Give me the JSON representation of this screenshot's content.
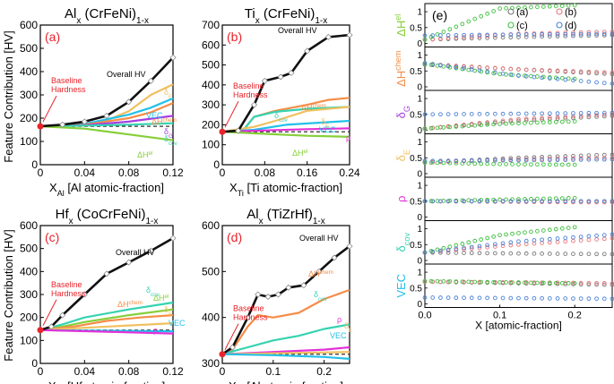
{
  "figure": {
    "shared_ylabel": "Feature Contribution [HV]",
    "baseline_label_line1": "Baseline",
    "baseline_label_line2": "Hardness",
    "overall_label": "Overall HV"
  },
  "colors": {
    "overall": "#111111",
    "baseline": "#e8242b",
    "dE": "#f0c060",
    "Hchem": "#f58d47",
    "Hel": "#86cf3a",
    "VEC": "#22c0ea",
    "dG": "#a63fe0",
    "rho": "#e331d8",
    "dcov": "#35d3b0",
    "panel_a": "#777777",
    "panel_b": "#e8767a",
    "panel_c": "#3fbf3f",
    "panel_d": "#4b82d6"
  },
  "chart_data": [
    {
      "type": "line",
      "id": "a",
      "letter": "(a)",
      "title_main": "Al",
      "title_sub1": "x",
      "title_mid": " (CrFeNi)",
      "title_sub2": "1-x",
      "xlabel_main": "X",
      "xlabel_sub": "Al",
      "xlabel_rest": " [Al atomic-fraction]",
      "xlim": [
        0,
        0.12
      ],
      "ylim": [
        0,
        600
      ],
      "xticks": [
        0,
        0.04,
        0.08,
        0.12
      ],
      "xtick_labels": [
        "0",
        "0.04",
        "0.08",
        "0.12"
      ],
      "yticks": [
        0,
        100,
        200,
        300,
        400,
        500,
        600
      ],
      "ytick_labels": [
        "0",
        "100",
        "200",
        "300",
        "400",
        "500",
        "600"
      ],
      "baseline": 165,
      "series": [
        {
          "key": "overall",
          "name": "Overall HV",
          "x": [
            0,
            0.02,
            0.04,
            0.06,
            0.08,
            0.1,
            0.12
          ],
          "y": [
            165,
            172,
            185,
            210,
            270,
            360,
            460
          ],
          "markers": true
        },
        {
          "key": "dE",
          "name": "δE",
          "x": [
            0,
            0.03,
            0.06,
            0.08,
            0.1,
            0.12
          ],
          "y": [
            165,
            170,
            190,
            230,
            300,
            345
          ]
        },
        {
          "key": "VEC",
          "name": "VEC",
          "x": [
            0,
            0.04,
            0.08,
            0.1,
            0.12
          ],
          "y": [
            165,
            175,
            215,
            245,
            285
          ]
        },
        {
          "key": "Hchem",
          "name": "ΔHchem",
          "x": [
            0,
            0.04,
            0.08,
            0.1,
            0.12
          ],
          "y": [
            165,
            172,
            200,
            225,
            265
          ]
        },
        {
          "key": "dG",
          "name": "δG",
          "x": [
            0,
            0.04,
            0.08,
            0.12
          ],
          "y": [
            165,
            170,
            185,
            210
          ]
        },
        {
          "key": "dcov",
          "name": "δcov",
          "x": [
            0,
            0.04,
            0.08,
            0.12
          ],
          "y": [
            165,
            168,
            172,
            178
          ]
        },
        {
          "key": "Hel",
          "name": "ΔHel",
          "x": [
            0,
            0.04,
            0.08,
            0.12
          ],
          "y": [
            165,
            155,
            130,
            105
          ]
        }
      ],
      "labels": {
        "dE": "δE",
        "VEC": "VEC",
        "Hchem": "ΔHchem",
        "dG": "δG",
        "dcov": "δcov",
        "Hel": "ΔHel"
      }
    },
    {
      "type": "line",
      "id": "b",
      "letter": "(b)",
      "title_main": "Ti",
      "title_sub1": "x",
      "title_mid": " (CrFeNi)",
      "title_sub2": "1-x",
      "xlabel_main": "X",
      "xlabel_sub": "Ti",
      "xlabel_rest": " [Ti atomic-fraction]",
      "xlim": [
        0,
        0.24
      ],
      "ylim": [
        0,
        700
      ],
      "xticks": [
        0,
        0.08,
        0.16,
        0.24
      ],
      "xtick_labels": [
        "0",
        "0.08",
        "0.16",
        "0.24"
      ],
      "yticks": [
        0,
        100,
        200,
        300,
        400,
        500,
        600,
        700
      ],
      "ytick_labels": [
        "0",
        "100",
        "200",
        "300",
        "400",
        "500",
        "600",
        "700"
      ],
      "baseline": 165,
      "series": [
        {
          "key": "overall",
          "name": "Overall HV",
          "x": [
            0,
            0.03,
            0.06,
            0.08,
            0.11,
            0.13,
            0.16,
            0.2,
            0.24
          ],
          "y": [
            165,
            170,
            300,
            420,
            440,
            460,
            570,
            640,
            650
          ],
          "markers": true
        },
        {
          "key": "Hchem",
          "name": "ΔHchem",
          "x": [
            0,
            0.04,
            0.06,
            0.1,
            0.16,
            0.2,
            0.24
          ],
          "y": [
            165,
            175,
            240,
            270,
            300,
            325,
            335
          ]
        },
        {
          "key": "dcov",
          "name": "δcov",
          "x": [
            0,
            0.04,
            0.06,
            0.1,
            0.16,
            0.24
          ],
          "y": [
            165,
            175,
            240,
            265,
            280,
            290
          ]
        },
        {
          "key": "dE",
          "name": "δE",
          "x": [
            0,
            0.06,
            0.1,
            0.16,
            0.24
          ],
          "y": [
            165,
            190,
            220,
            270,
            290
          ]
        },
        {
          "key": "VEC",
          "name": "VEC",
          "x": [
            0,
            0.06,
            0.12,
            0.24
          ],
          "y": [
            165,
            175,
            200,
            220
          ]
        },
        {
          "key": "rho",
          "name": "ρ",
          "x": [
            0,
            0.08,
            0.16,
            0.24
          ],
          "y": [
            165,
            172,
            178,
            182
          ]
        },
        {
          "key": "Hel",
          "name": "ΔHel",
          "x": [
            0,
            0.08,
            0.16,
            0.24
          ],
          "y": [
            165,
            155,
            145,
            140
          ]
        }
      ],
      "labels": {
        "Hchem": "ΔHchem",
        "dcov": "δcov",
        "dE": "δE",
        "VEC": "VEC",
        "rho": "ρ",
        "Hel": "ΔHel"
      }
    },
    {
      "type": "line",
      "id": "c",
      "letter": "(c)",
      "title_main": "Hf",
      "title_sub1": "x",
      "title_mid": " (CoCrFeNi)",
      "title_sub2": "1-x",
      "xlabel_main": "X",
      "xlabel_sub": "Hf",
      "xlabel_rest": " [Hf atomic-fraction]",
      "xlim": [
        0,
        0.12
      ],
      "ylim": [
        0,
        600
      ],
      "xticks": [
        0,
        0.04,
        0.08,
        0.12
      ],
      "xtick_labels": [
        "0",
        "0.04",
        "0.08",
        "0.12"
      ],
      "yticks": [
        0,
        100,
        200,
        300,
        400,
        500,
        600
      ],
      "ytick_labels": [
        "0",
        "100",
        "200",
        "300",
        "400",
        "500",
        "600"
      ],
      "baseline": 145,
      "series": [
        {
          "key": "overall",
          "name": "Overall HV",
          "x": [
            0,
            0.01,
            0.02,
            0.04,
            0.06,
            0.08,
            0.1,
            0.12
          ],
          "y": [
            145,
            160,
            210,
            300,
            390,
            440,
            490,
            545
          ],
          "markers": true
        },
        {
          "key": "dcov",
          "name": "δcov",
          "x": [
            0,
            0.02,
            0.04,
            0.08,
            0.12
          ],
          "y": [
            145,
            170,
            200,
            235,
            265
          ]
        },
        {
          "key": "Hel",
          "name": "ΔHel",
          "x": [
            0,
            0.02,
            0.04,
            0.08,
            0.12
          ],
          "y": [
            145,
            160,
            180,
            210,
            235
          ]
        },
        {
          "key": "Hchem",
          "name": "ΔHchem",
          "x": [
            0,
            0.03,
            0.06,
            0.09,
            0.12
          ],
          "y": [
            145,
            160,
            185,
            200,
            210
          ]
        },
        {
          "key": "dE",
          "name": "δE",
          "x": [
            0,
            0.04,
            0.08,
            0.12
          ],
          "y": [
            145,
            155,
            165,
            175
          ]
        },
        {
          "key": "VEC",
          "name": "VEC",
          "x": [
            0,
            0.06,
            0.12
          ],
          "y": [
            145,
            142,
            140
          ]
        },
        {
          "key": "rho",
          "name": "ρ",
          "x": [
            0,
            0.06,
            0.12
          ],
          "y": [
            145,
            138,
            130
          ]
        }
      ],
      "labels": {
        "dcov": "δcov",
        "Hel": "ΔHel",
        "Hchem": "ΔHchem",
        "dE": "δE",
        "VEC": "VEC",
        "rho": "ρ"
      }
    },
    {
      "type": "line",
      "id": "d",
      "letter": "(d)",
      "title_main": "Al",
      "title_sub1": "x",
      "title_mid": " (TiZrHf)",
      "title_sub2": "1-x",
      "xlabel_main": "X",
      "xlabel_sub": "Al",
      "xlabel_rest": " [Al atomic-fraction]",
      "xlim": [
        0,
        0.25
      ],
      "ylim": [
        300,
        600
      ],
      "xticks": [
        0,
        0.1,
        0.2
      ],
      "xtick_labels": [
        "0",
        "0.1",
        "0.2"
      ],
      "yticks": [
        300,
        400,
        500,
        600
      ],
      "ytick_labels": [
        "300",
        "400",
        "500",
        "600"
      ],
      "baseline": 320,
      "series": [
        {
          "key": "overall",
          "name": "Overall HV",
          "x": [
            0,
            0.02,
            0.05,
            0.07,
            0.09,
            0.11,
            0.13,
            0.16,
            0.19,
            0.22,
            0.25
          ],
          "y": [
            320,
            335,
            400,
            450,
            445,
            450,
            465,
            470,
            500,
            530,
            555
          ],
          "markers": true
        },
        {
          "key": "Hchem",
          "name": "ΔHchem",
          "x": [
            0,
            0.02,
            0.05,
            0.07,
            0.1,
            0.15,
            0.2,
            0.25
          ],
          "y": [
            320,
            330,
            380,
            405,
            400,
            410,
            440,
            460
          ]
        },
        {
          "key": "dcov",
          "name": "δcov",
          "x": [
            0,
            0.05,
            0.1,
            0.15,
            0.2,
            0.25
          ],
          "y": [
            320,
            335,
            350,
            360,
            375,
            385
          ]
        },
        {
          "key": "rho",
          "name": "ρ",
          "x": [
            0,
            0.1,
            0.2,
            0.25
          ],
          "y": [
            320,
            325,
            330,
            335
          ]
        },
        {
          "key": "dE",
          "name": "δE",
          "x": [
            0,
            0.1,
            0.2,
            0.25
          ],
          "y": [
            320,
            322,
            324,
            325
          ]
        },
        {
          "key": "VEC",
          "name": "VEC",
          "x": [
            0,
            0.1,
            0.2,
            0.25
          ],
          "y": [
            320,
            318,
            314,
            310
          ]
        }
      ],
      "labels": {
        "Hchem": "ΔHchem",
        "dcov": "δcov",
        "rho": "ρ",
        "dE": "δE",
        "VEC": "VEC"
      }
    },
    {
      "type": "scatter",
      "id": "e",
      "letter": "(e)",
      "xlabel": "X [atomic-fraction]",
      "xlim": [
        0,
        0.25
      ],
      "xticks": [
        0,
        0.1,
        0.2
      ],
      "xtick_labels": [
        "0.0",
        "0.1",
        "0.2"
      ],
      "yticks": [
        0,
        0.5,
        1
      ],
      "ytick_labels": [
        "0",
        "0.5",
        "1"
      ],
      "legend": [
        {
          "key": "panel_a",
          "label": "(a)"
        },
        {
          "key": "panel_b",
          "label": "(b)"
        },
        {
          "key": "panel_c",
          "label": "(c)"
        },
        {
          "key": "panel_d",
          "label": "(d)"
        }
      ],
      "rows": [
        {
          "label": "ΔHel",
          "color_key": "Hel",
          "series": {
            "panel_a": [
              0.12,
              0.2,
              0.26
            ],
            "panel_b": [
              0.12,
              0.3,
              0.37
            ],
            "panel_c": [
              0.12,
              1.1,
              1.2
            ],
            "panel_d": [
              0.25,
              0.28,
              0.3
            ]
          }
        },
        {
          "label": "ΔHchem",
          "color_key": "Hchem",
          "series": {
            "panel_a": [
              0.7,
              0.55,
              0.4
            ],
            "panel_b": [
              0.72,
              0.55,
              0.45
            ],
            "panel_c": [
              0.72,
              0.4,
              0.25
            ],
            "panel_d": [
              0.75,
              0.35,
              0.1
            ]
          }
        },
        {
          "label": "δG",
          "color_key": "dG",
          "series": {
            "panel_a": [
              0.05,
              0.3,
              0.45
            ],
            "panel_b": [
              0.05,
              0.35,
              0.5
            ],
            "panel_c": [
              0.05,
              0.2,
              0.28
            ],
            "panel_d": [
              0.5,
              0.52,
              0.55
            ]
          }
        },
        {
          "label": "δE",
          "color_key": "dE",
          "series": {
            "panel_a": [
              0.35,
              0.5,
              0.6
            ],
            "panel_b": [
              0.35,
              0.45,
              0.5
            ],
            "panel_c": [
              0.35,
              0.3,
              0.28
            ],
            "panel_d": [
              0.4,
              0.42,
              0.45
            ]
          }
        },
        {
          "label": "ρ",
          "color_key": "rho",
          "series": {
            "panel_a": [
              0.5,
              0.5,
              0.5
            ],
            "panel_b": [
              0.5,
              0.48,
              0.46
            ],
            "panel_c": [
              0.5,
              0.55,
              0.6
            ],
            "panel_d": [
              0.5,
              0.5,
              0.5
            ]
          }
        },
        {
          "label": "δcov",
          "color_key": "dcov",
          "series": {
            "panel_a": [
              0.25,
              0.22,
              0.2
            ],
            "panel_b": [
              0.25,
              0.5,
              0.7
            ],
            "panel_c": [
              0.25,
              0.8,
              1.05
            ],
            "panel_d": [
              0.25,
              0.6,
              0.82
            ]
          }
        },
        {
          "label": "VEC",
          "color_key": "VEC",
          "series": {
            "panel_a": [
              0.7,
              0.65,
              0.6
            ],
            "panel_b": [
              0.7,
              0.68,
              0.65
            ],
            "panel_c": [
              0.72,
              0.68,
              0.65
            ],
            "panel_d": [
              0.2,
              0.18,
              0.16
            ]
          }
        }
      ]
    }
  ]
}
